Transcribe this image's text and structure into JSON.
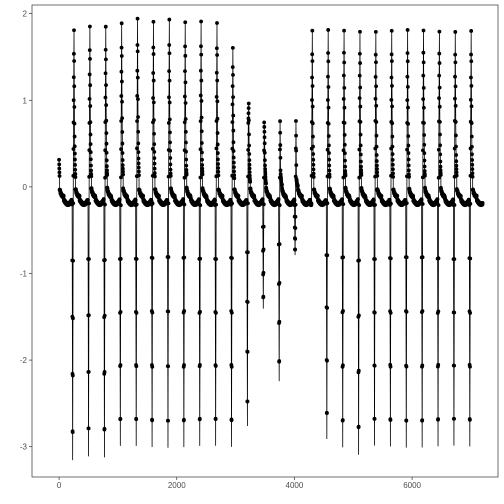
{
  "chart_data": {
    "type": "line",
    "title": "",
    "xlabel": "",
    "ylabel": "",
    "xlim": [
      -460,
      7460
    ],
    "ylim": [
      -3.35,
      2.1
    ],
    "x_ticks": [
      0,
      2000,
      4000,
      6000
    ],
    "x_tick_labels": [
      "0",
      "2000",
      "4000",
      "6000"
    ],
    "y_ticks": [
      -3,
      -2,
      -1,
      0,
      1,
      2
    ],
    "y_tick_labels": [
      "-3",
      "-2",
      "-1",
      "0",
      "1",
      "2"
    ],
    "grid": false,
    "marker": "filled-circle",
    "series_color": "#000000",
    "n_points": 7200,
    "cycle_period": 270,
    "beats": [
      {
        "peak": 1.85,
        "trough": -3.15
      },
      {
        "peak": 1.8,
        "trough": -3.1
      },
      {
        "peak": 1.84,
        "trough": -3.12
      },
      {
        "peak": 1.85,
        "trough": -3.0
      },
      {
        "peak": 1.9,
        "trough": -3.0
      },
      {
        "peak": 1.95,
        "trough": -3.0
      },
      {
        "peak": 1.9,
        "trough": -3.0
      },
      {
        "peak": 1.92,
        "trough": -3.0
      },
      {
        "peak": 1.9,
        "trough": -3.0
      },
      {
        "peak": 1.92,
        "trough": -3.0
      },
      {
        "peak": 1.9,
        "trough": -3.0
      },
      {
        "peak": 1.6,
        "trough": -2.75
      },
      {
        "peak": 0.95,
        "trough": -1.4
      },
      {
        "peak": 0.5,
        "trough": -2.25
      },
      {
        "peak": 0.2,
        "trough": -0.8
      },
      {
        "peak": 0.1,
        "trough": -0.2
      },
      {
        "peak": 1.8,
        "trough": -2.9
      },
      {
        "peak": 1.8,
        "trough": -3.0
      },
      {
        "peak": 1.8,
        "trough": -3.1
      },
      {
        "peak": 1.8,
        "trough": -3.0
      },
      {
        "peak": 1.8,
        "trough": -3.0
      },
      {
        "peak": 1.8,
        "trough": -3.0
      },
      {
        "peak": 1.8,
        "trough": -3.0
      },
      {
        "peak": 1.8,
        "trough": -3.0
      },
      {
        "peak": 1.8,
        "trough": -3.0
      },
      {
        "peak": 1.8,
        "trough": -3.0
      },
      {
        "peak": 1.8,
        "trough": -3.0
      }
    ]
  }
}
